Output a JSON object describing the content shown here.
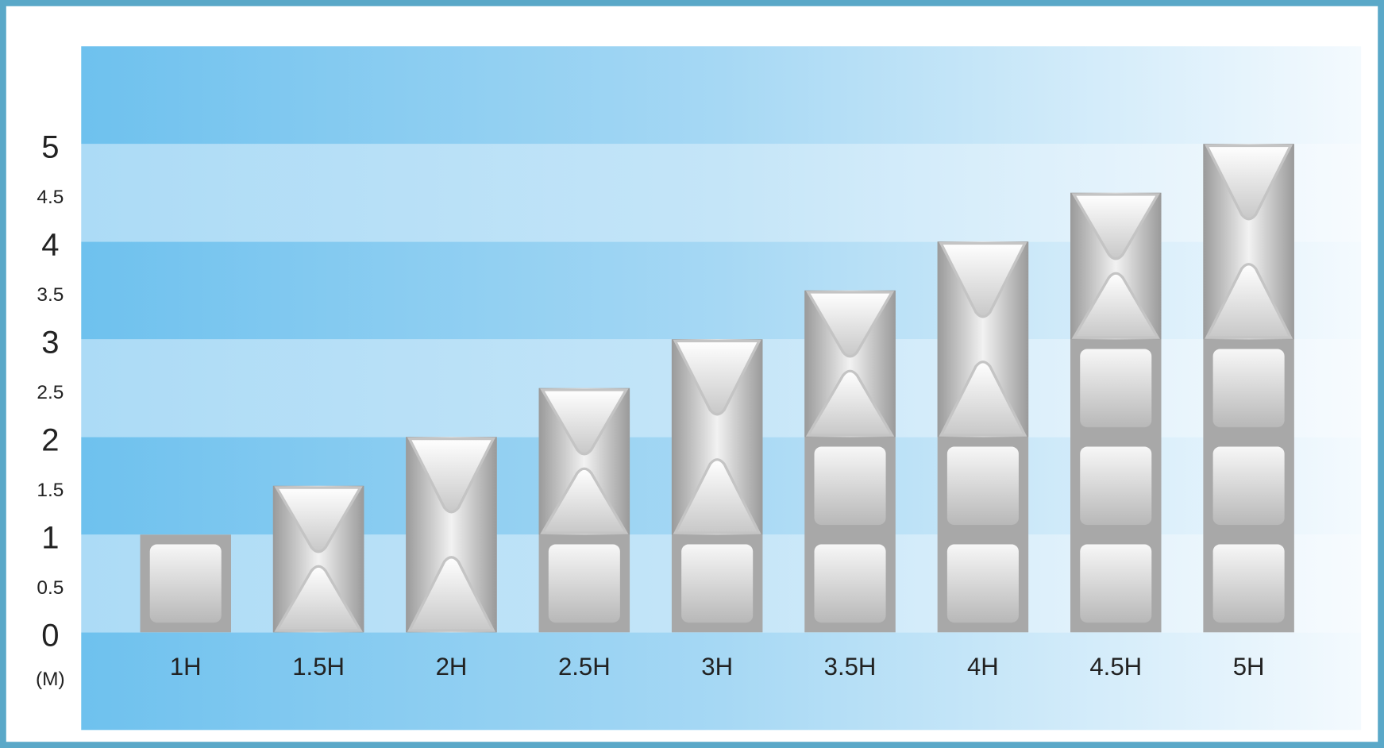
{
  "chart_data": {
    "type": "bar",
    "y_label": "(M)",
    "categories": [
      "1H",
      "1.5H",
      "2H",
      "2.5H",
      "3H",
      "3.5H",
      "4H",
      "4.5H",
      "5H"
    ],
    "values": [
      1,
      1.5,
      2,
      2.5,
      3,
      3.5,
      4,
      4.5,
      5
    ],
    "color": "#a8a8a8",
    "ylim": [
      0,
      5
    ],
    "yticks": [
      0,
      0.5,
      1,
      1.5,
      2,
      2.5,
      3,
      3.5,
      4,
      4.5,
      5
    ],
    "grid": false
  }
}
